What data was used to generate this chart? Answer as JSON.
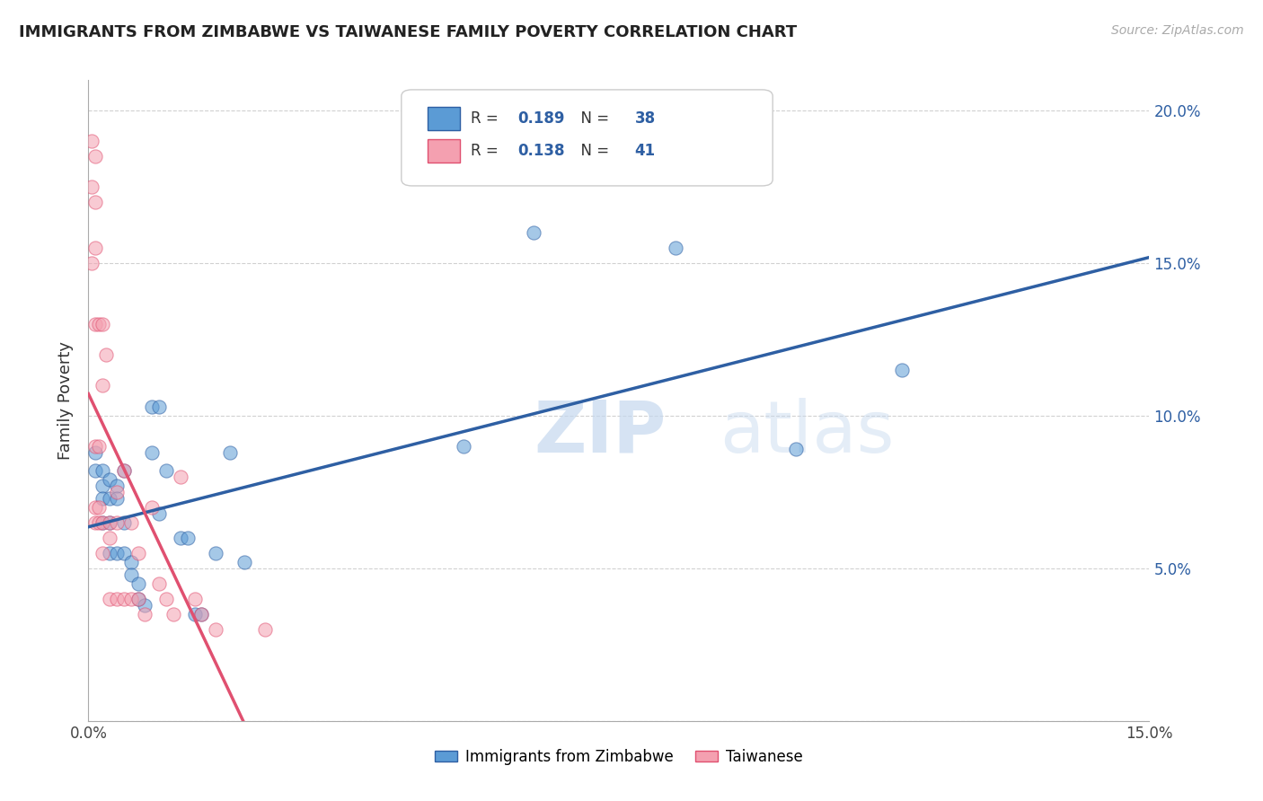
{
  "title": "IMMIGRANTS FROM ZIMBABWE VS TAIWANESE FAMILY POVERTY CORRELATION CHART",
  "source": "Source: ZipAtlas.com",
  "ylabel": "Family Poverty",
  "xlim": [
    0.0,
    0.15
  ],
  "ylim": [
    0.0,
    0.21
  ],
  "legend1_R": "0.189",
  "legend1_N": "38",
  "legend2_R": "0.138",
  "legend2_N": "41",
  "color_blue": "#5b9bd5",
  "color_pink": "#f4a0b0",
  "color_blue_line": "#2E5FA3",
  "color_pink_line": "#E05070",
  "color_dashed": "#c8a8b8",
  "watermark_zip": "ZIP",
  "watermark_atlas": "atlas",
  "zimbabwe_x": [
    0.001,
    0.001,
    0.002,
    0.002,
    0.002,
    0.002,
    0.003,
    0.003,
    0.003,
    0.003,
    0.004,
    0.004,
    0.004,
    0.005,
    0.005,
    0.005,
    0.006,
    0.006,
    0.007,
    0.007,
    0.008,
    0.009,
    0.009,
    0.01,
    0.01,
    0.011,
    0.013,
    0.014,
    0.015,
    0.016,
    0.018,
    0.02,
    0.022,
    0.053,
    0.063,
    0.083,
    0.1,
    0.115
  ],
  "zimbabwe_y": [
    0.088,
    0.082,
    0.082,
    0.077,
    0.073,
    0.065,
    0.079,
    0.073,
    0.065,
    0.055,
    0.077,
    0.073,
    0.055,
    0.082,
    0.065,
    0.055,
    0.052,
    0.048,
    0.045,
    0.04,
    0.038,
    0.103,
    0.088,
    0.103,
    0.068,
    0.082,
    0.06,
    0.06,
    0.035,
    0.035,
    0.055,
    0.088,
    0.052,
    0.09,
    0.16,
    0.155,
    0.089,
    0.115
  ],
  "taiwanese_x": [
    0.0005,
    0.0005,
    0.0005,
    0.001,
    0.001,
    0.001,
    0.001,
    0.001,
    0.001,
    0.001,
    0.0015,
    0.0015,
    0.0015,
    0.0015,
    0.002,
    0.002,
    0.002,
    0.002,
    0.0025,
    0.003,
    0.003,
    0.003,
    0.004,
    0.004,
    0.004,
    0.005,
    0.005,
    0.006,
    0.006,
    0.007,
    0.007,
    0.008,
    0.009,
    0.01,
    0.011,
    0.012,
    0.013,
    0.015,
    0.016,
    0.018,
    0.025
  ],
  "taiwanese_y": [
    0.19,
    0.175,
    0.15,
    0.185,
    0.17,
    0.155,
    0.13,
    0.09,
    0.07,
    0.065,
    0.13,
    0.09,
    0.07,
    0.065,
    0.13,
    0.11,
    0.065,
    0.055,
    0.12,
    0.065,
    0.06,
    0.04,
    0.075,
    0.065,
    0.04,
    0.082,
    0.04,
    0.065,
    0.04,
    0.055,
    0.04,
    0.035,
    0.07,
    0.045,
    0.04,
    0.035,
    0.08,
    0.04,
    0.035,
    0.03,
    0.03
  ]
}
